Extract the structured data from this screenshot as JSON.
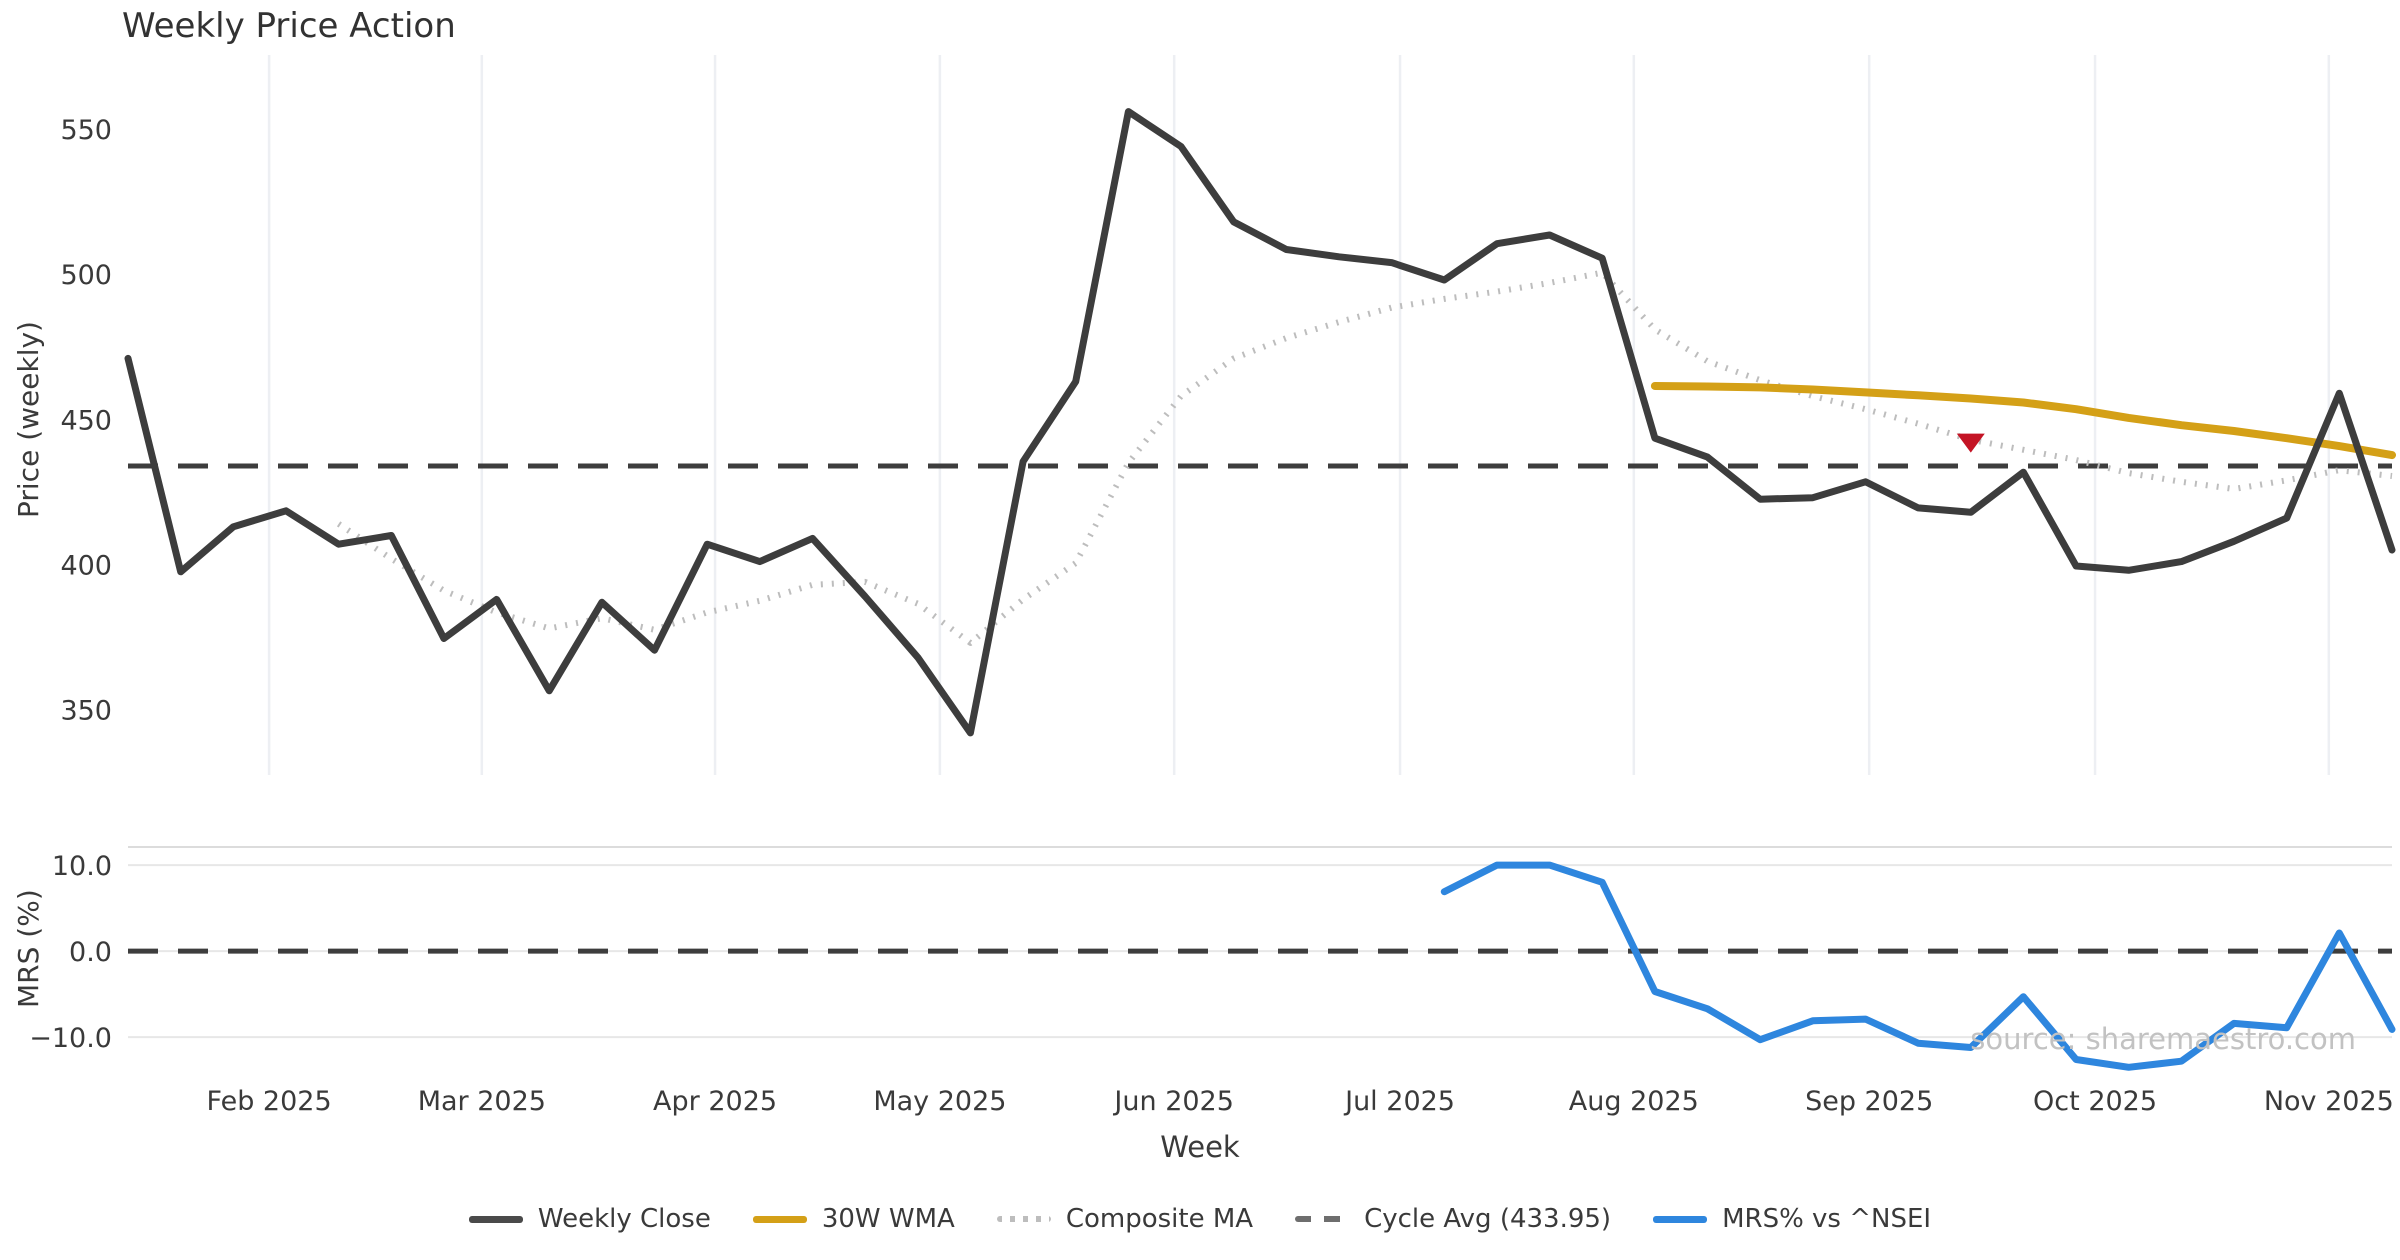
{
  "title": "Weekly Price Action",
  "source_note": "source: sharemaestro.com",
  "xlabel": "Week",
  "top_chart": {
    "ylabel": "Price (weekly)",
    "yticks": [
      {
        "label": "550",
        "value": 550
      },
      {
        "label": "500",
        "value": 500
      },
      {
        "label": "450",
        "value": 450
      },
      {
        "label": "400",
        "value": 400
      },
      {
        "label": "350",
        "value": 350
      }
    ],
    "ylim": [
      327.5,
      575.5
    ]
  },
  "bottom_chart": {
    "ylabel": "MRS (%)",
    "yticks": [
      {
        "label": "10.0",
        "value": 10
      },
      {
        "label": "0.0",
        "value": 0
      },
      {
        "label": "−10.0",
        "value": -10
      }
    ],
    "ylim": [
      -14.4,
      12.1
    ]
  },
  "x_ticks": [
    {
      "label": "Feb 2025",
      "week": 2.68
    },
    {
      "label": "Mar 2025",
      "week": 6.72
    },
    {
      "label": "Apr 2025",
      "week": 11.15
    },
    {
      "label": "May 2025",
      "week": 15.42
    },
    {
      "label": "Jun 2025",
      "week": 19.87
    },
    {
      "label": "Jul 2025",
      "week": 24.16
    },
    {
      "label": "Aug 2025",
      "week": 28.6
    },
    {
      "label": "Sep 2025",
      "week": 33.07
    },
    {
      "label": "Oct 2025",
      "week": 37.36
    },
    {
      "label": "Nov 2025",
      "week": 41.8
    }
  ],
  "legend": [
    {
      "label": "Weekly Close",
      "kind": "solid",
      "color": "#4a4a4a"
    },
    {
      "label": "30W WMA",
      "kind": "solid",
      "color": "#d4a017"
    },
    {
      "label": "Composite MA",
      "kind": "dotted",
      "color": "#bdbdbd"
    },
    {
      "label": "Cycle Avg (433.95)",
      "kind": "dashed",
      "color": "#6e6e6e"
    },
    {
      "label": "MRS% vs ^NSEI",
      "kind": "solid",
      "color": "#2e86de"
    }
  ],
  "colors": {
    "close": "#3d3d3d",
    "wma": "#d4a017",
    "composite": "#bdbdbd",
    "cycle_dash": "#3d3d3d",
    "mrs": "#2e86de",
    "marker": "#c41425",
    "grid_vertical": "#edeff3",
    "grid_horizontal": "#e7e7e7",
    "panel_border": "#dcdcdc",
    "tick_text": "#3a3a3a"
  },
  "chart_data": [
    {
      "type": "line",
      "panel": "price",
      "title": "Weekly Price Action",
      "xlabel": "Week",
      "ylabel": "Price (weekly)",
      "ylim": [
        327.5,
        575.5
      ],
      "x_unit": "week-index (0..43, Jan 2025 → Nov 2025)",
      "cycle_avg": 433.95,
      "sell_marker": {
        "week": 35,
        "value": 442
      },
      "series": [
        {
          "name": "Weekly Close",
          "values": [
            471,
            397.5,
            413,
            418.5,
            407,
            410,
            374.5,
            388,
            356.5,
            387,
            370.5,
            407,
            401,
            409,
            389,
            368,
            342,
            435.5,
            463,
            556,
            544,
            518,
            508.5,
            506,
            504,
            498,
            510.5,
            513.5,
            505.5,
            443.5,
            437,
            422.5,
            423,
            428.5,
            419.5,
            418,
            431.8,
            399.5,
            398,
            401,
            408,
            416,
            459,
            405
          ]
        },
        {
          "name": "Composite MA",
          "values": [
            null,
            null,
            null,
            null,
            414,
            402,
            391,
            383.5,
            378,
            381.5,
            377.5,
            383.5,
            387.5,
            393,
            394,
            386.5,
            373,
            388,
            400.5,
            435,
            458,
            471,
            478,
            483.5,
            488.5,
            491.5,
            494,
            497,
            500.5,
            481,
            470,
            463.5,
            458,
            453.5,
            448.5,
            443,
            439.5,
            436,
            431.5,
            428.5,
            426,
            429,
            432.5,
            430.5
          ]
        },
        {
          "name": "30W WMA",
          "values": [
            null,
            null,
            null,
            null,
            null,
            null,
            null,
            null,
            null,
            null,
            null,
            null,
            null,
            null,
            null,
            null,
            null,
            null,
            null,
            null,
            null,
            null,
            null,
            null,
            null,
            null,
            null,
            null,
            null,
            461.5,
            461.3,
            461,
            460.3,
            459.3,
            458.3,
            457.2,
            455.8,
            453.5,
            450.5,
            448,
            446,
            443.5,
            440.8,
            437.7
          ]
        }
      ]
    },
    {
      "type": "line",
      "panel": "mrs",
      "ylabel": "MRS (%)",
      "ylim": [
        -14.4,
        12.1
      ],
      "zero_line": 0,
      "series": [
        {
          "name": "MRS% vs ^NSEI",
          "values": [
            null,
            null,
            null,
            null,
            null,
            null,
            null,
            null,
            null,
            null,
            null,
            null,
            null,
            null,
            null,
            null,
            null,
            null,
            null,
            null,
            null,
            null,
            null,
            null,
            null,
            6.9,
            10,
            10,
            8,
            -4.7,
            -6.7,
            -10.3,
            -8.1,
            -7.9,
            -10.7,
            -11.2,
            -5.3,
            -12.6,
            -13.5,
            -12.8,
            -8.4,
            -8.9,
            2.1,
            -9.1
          ]
        }
      ]
    }
  ]
}
